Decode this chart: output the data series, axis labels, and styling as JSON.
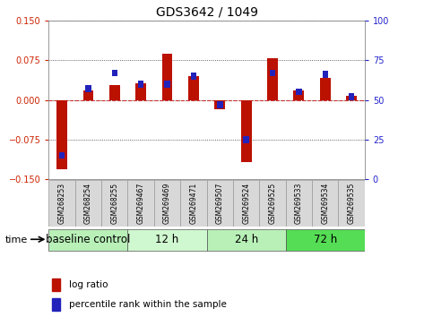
{
  "title": "GDS3642 / 1049",
  "samples": [
    "GSM268253",
    "GSM268254",
    "GSM268255",
    "GSM269467",
    "GSM269469",
    "GSM269471",
    "GSM269507",
    "GSM269524",
    "GSM269525",
    "GSM269533",
    "GSM269534",
    "GSM269535"
  ],
  "log_ratio": [
    -0.132,
    0.018,
    0.028,
    0.032,
    0.088,
    0.045,
    -0.018,
    -0.118,
    0.078,
    0.018,
    0.042,
    0.008
  ],
  "percentile": [
    15,
    57,
    67,
    60,
    60,
    65,
    47,
    25,
    67,
    55,
    66,
    52
  ],
  "groups": [
    {
      "label": "baseline control",
      "start": 0,
      "end": 3,
      "color": "#b8f0b8"
    },
    {
      "label": "12 h",
      "start": 3,
      "end": 6,
      "color": "#d0f8d0"
    },
    {
      "label": "24 h",
      "start": 6,
      "end": 9,
      "color": "#b8f0b8"
    },
    {
      "label": "72 h",
      "start": 9,
      "end": 12,
      "color": "#55dd55"
    }
  ],
  "bar_width": 0.4,
  "blue_bar_width": 0.22,
  "blue_bar_height": 0.013,
  "ylim_left": [
    -0.15,
    0.15
  ],
  "yticks_left": [
    -0.15,
    -0.075,
    0,
    0.075,
    0.15
  ],
  "ylim_right": [
    0,
    100
  ],
  "yticks_right": [
    0,
    25,
    50,
    75,
    100
  ],
  "red_color": "#bb1100",
  "blue_color": "#2222bb",
  "dotted_color": "#333333",
  "red_dashed_color": "#cc3333",
  "title_fontsize": 10,
  "tick_fontsize": 7,
  "sample_fontsize": 5.5,
  "legend_fontsize": 7.5,
  "group_label_fontsize": 8.5,
  "time_fontsize": 8,
  "axis_color_left": "#cc2200",
  "axis_color_right": "#2222cc",
  "sample_box_color": "#d8d8d8",
  "sample_box_edge": "#999999"
}
